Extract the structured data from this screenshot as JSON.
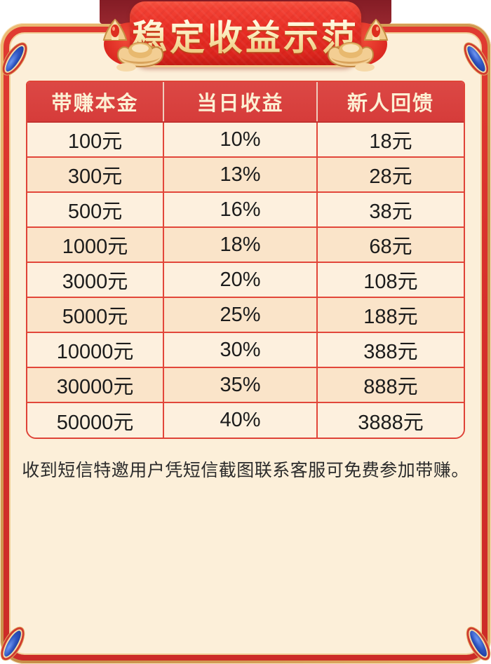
{
  "banner": {
    "title": "稳定收益示范"
  },
  "table": {
    "headers": [
      "带赚本金",
      "当日收益",
      "新人回馈"
    ],
    "rows": [
      [
        "100元",
        "10%",
        "18元"
      ],
      [
        "300元",
        "13%",
        "28元"
      ],
      [
        "500元",
        "16%",
        "38元"
      ],
      [
        "1000元",
        "18%",
        "68元"
      ],
      [
        "3000元",
        "20%",
        "108元"
      ],
      [
        "5000元",
        "25%",
        "188元"
      ],
      [
        "10000元",
        "30%",
        "388元"
      ],
      [
        "30000元",
        "35%",
        "888元"
      ],
      [
        "50000元",
        "40%",
        "3888元"
      ]
    ]
  },
  "note": "收到短信特邀用户凭短信截图联系客服可免费参加带赚。",
  "colors": {
    "banner_red": "#E8352B",
    "ribbon_maroon": "#8E212B",
    "frame_gold": "#D9A55F",
    "frame_red": "#D93A31",
    "panel_cream": "#FCEFD9",
    "header_red": "#D94341",
    "header_text": "#FCF0D4",
    "row_light": "#FDF0DE",
    "row_dark": "#FAE4C9",
    "grid_red": "#E2463A",
    "title_gold": "#F8E6AE",
    "gem_blue": "#2E55C0"
  }
}
